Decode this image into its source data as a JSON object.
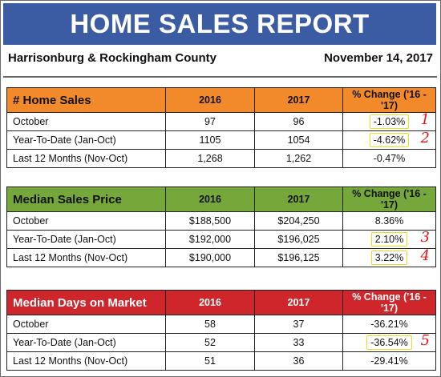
{
  "banner": {
    "title": "HOME SALES REPORT"
  },
  "subheader": {
    "area": "Harrisonburg & Rockingham County",
    "date": "November 14, 2017"
  },
  "colors": {
    "banner": "#3b5ba3",
    "sales_header": "#f28a2c",
    "price_header": "#75a73a",
    "days_header": "#cf262c",
    "highlight_box": "#e8df1e",
    "annotation": "#e0161b"
  },
  "tables": [
    {
      "title": "# Home Sales",
      "col_2016": "2016",
      "col_2017": "2017",
      "col_change": "% Change ('16 - '17)",
      "rows": [
        {
          "label": "October",
          "v2016": "97",
          "v2017": "96",
          "change": "-1.03%",
          "mark": "1"
        },
        {
          "label": "Year-To-Date (Jan-Oct)",
          "v2016": "1105",
          "v2017": "1054",
          "change": "-4.62%",
          "mark": "2"
        },
        {
          "label": "Last 12 Months (Nov-Oct)",
          "v2016": "1,268",
          "v2017": "1,262",
          "change": "-0.47%",
          "mark": ""
        }
      ]
    },
    {
      "title": "Median Sales Price",
      "col_2016": "2016",
      "col_2017": "2017",
      "col_change": "% Change ('16 - '17)",
      "rows": [
        {
          "label": "October",
          "v2016": "$188,500",
          "v2017": "$204,250",
          "change": "8.36%",
          "mark": ""
        },
        {
          "label": "Year-To-Date (Jan-Oct)",
          "v2016": "$192,000",
          "v2017": "$196,025",
          "change": "2.10%",
          "mark": "3"
        },
        {
          "label": "Last 12 Months (Nov-Oct)",
          "v2016": "$190,000",
          "v2017": "$196,125",
          "change": "3.22%",
          "mark": "4"
        }
      ]
    },
    {
      "title": "Median Days on Market",
      "col_2016": "2016",
      "col_2017": "2017",
      "col_change": "% Change ('16 - '17)",
      "rows": [
        {
          "label": "October",
          "v2016": "58",
          "v2017": "37",
          "change": "-36.21%",
          "mark": ""
        },
        {
          "label": "Year-To-Date (Jan-Oct)",
          "v2016": "52",
          "v2017": "33",
          "change": "-36.54%",
          "mark": "5"
        },
        {
          "label": "Last 12 Months (Nov-Oct)",
          "v2016": "51",
          "v2017": "36",
          "change": "-29.41%",
          "mark": ""
        }
      ]
    }
  ]
}
